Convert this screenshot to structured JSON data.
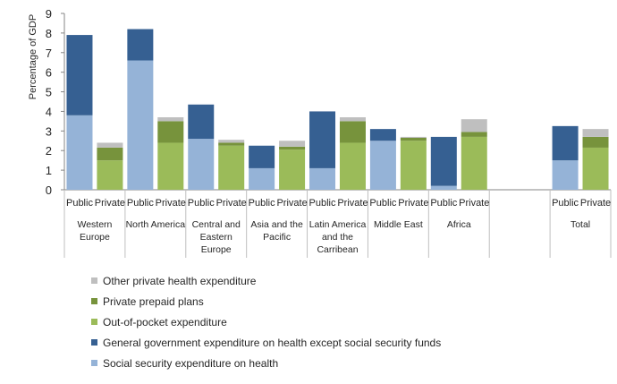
{
  "chart_data": {
    "type": "bar",
    "stacked": true,
    "ylabel": "Percentage of GDP",
    "ylim": [
      0,
      9
    ],
    "yticks": [
      0,
      1,
      2,
      3,
      4,
      5,
      6,
      7,
      8,
      9
    ],
    "grid": false,
    "legend_position": "bottom-left",
    "bar_labels": [
      "Public",
      "Private"
    ],
    "groups": [
      {
        "name": "Western Europe",
        "name_lines": [
          "Western",
          "Europe"
        ]
      },
      {
        "name": "North America",
        "name_lines": [
          "North America"
        ]
      },
      {
        "name": "Central and Eastern Europe",
        "name_lines": [
          "Central and",
          "Eastern",
          "Europe"
        ]
      },
      {
        "name": "Asia and the Pacific",
        "name_lines": [
          "Asia and the",
          "Pacific"
        ]
      },
      {
        "name": "Latin America and the Carribean",
        "name_lines": [
          "Latin America",
          "and the",
          "Carribean"
        ]
      },
      {
        "name": "Middle East",
        "name_lines": [
          "Middle East"
        ]
      },
      {
        "name": "Africa",
        "name_lines": [
          "Africa"
        ]
      },
      {
        "name": "",
        "name_lines": []
      },
      {
        "name": "Total",
        "name_lines": [
          "Total"
        ]
      }
    ],
    "public_series": [
      {
        "name": "Social security expenditure on health",
        "color": "#95b3d7",
        "values": [
          3.8,
          6.6,
          2.6,
          1.1,
          1.1,
          2.5,
          0.2,
          null,
          1.5
        ]
      },
      {
        "name": "General government expenditure on health except social security funds",
        "color": "#366092",
        "values": [
          4.1,
          1.6,
          1.75,
          1.15,
          2.9,
          0.6,
          2.5,
          null,
          1.75
        ]
      }
    ],
    "private_series": [
      {
        "name": "Out-of-pocket expenditure",
        "color": "#9bbb59",
        "values": [
          1.5,
          2.4,
          2.25,
          2.05,
          2.4,
          2.5,
          2.7,
          null,
          2.15
        ]
      },
      {
        "name": "Private prepaid plans",
        "color": "#77933c",
        "values": [
          0.65,
          1.1,
          0.15,
          0.15,
          1.1,
          0.15,
          0.25,
          null,
          0.55
        ]
      },
      {
        "name": "Other private health expenditure",
        "color": "#bfbfbf",
        "values": [
          0.25,
          0.2,
          0.15,
          0.3,
          0.2,
          0.05,
          0.65,
          null,
          0.4
        ]
      }
    ]
  },
  "legend": [
    {
      "label": "Other private health expenditure",
      "color": "#bfbfbf"
    },
    {
      "label": "Private prepaid plans",
      "color": "#77933c"
    },
    {
      "label": "Out-of-pocket expenditure",
      "color": "#9bbb59"
    },
    {
      "label": "General government expenditure on health except social security funds",
      "color": "#366092"
    },
    {
      "label": "Social security expenditure on health",
      "color": "#95b3d7"
    }
  ]
}
